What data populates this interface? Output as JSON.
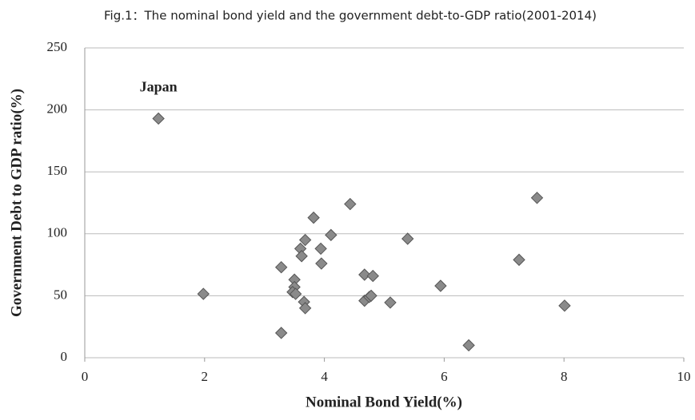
{
  "chart_data": {
    "type": "scatter",
    "title": "Fig.1：The nominal bond yield and the government debt-to-GDP ratio(2001-2014)",
    "xlabel": "Nominal Bond Yield(%)",
    "ylabel": "Government Debt to GDP ratio(%)",
    "annotations": [
      "Japan"
    ],
    "series": [
      {
        "color": "#8a8a8a",
        "x": [
          1.23,
          1.98,
          3.28,
          3.28,
          3.5,
          3.5,
          3.47,
          3.52,
          3.6,
          3.62,
          3.68,
          3.82,
          3.66,
          3.68,
          3.94,
          3.95,
          4.11,
          4.43,
          4.67,
          4.67,
          4.75,
          4.81,
          4.78,
          5.1,
          5.39,
          5.94,
          6.41,
          7.25,
          7.55,
          8.01
        ],
        "values": [
          193,
          51.5,
          20,
          73,
          63,
          57,
          53,
          51.5,
          88,
          82,
          95,
          113,
          45,
          40,
          88,
          76,
          99,
          124,
          67,
          46,
          49,
          66,
          50,
          44.5,
          96,
          58,
          10,
          79,
          129,
          42
        ]
      }
    ],
    "xlim": [
      0,
      10
    ],
    "xticks": [
      0,
      2,
      4,
      6,
      8,
      10
    ],
    "ylim": [
      0,
      250
    ],
    "yticks": [
      0,
      50,
      100,
      150,
      200,
      250
    ],
    "grid": true
  }
}
